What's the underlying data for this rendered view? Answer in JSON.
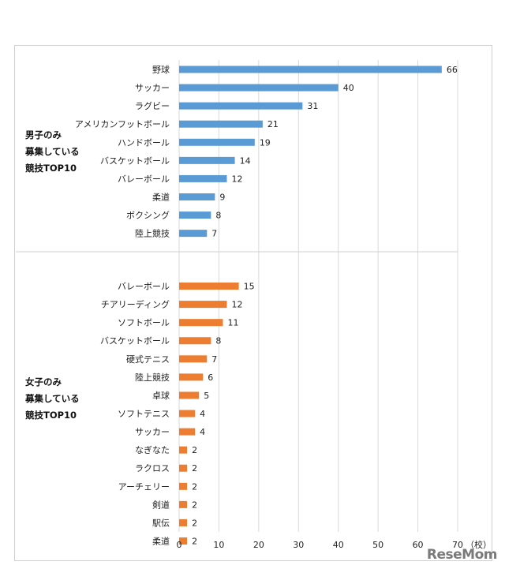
{
  "chart_data": {
    "type": "bar",
    "orientation": "horizontal",
    "xlim": [
      0,
      70
    ],
    "x_ticks": [
      "0",
      "10",
      "20",
      "30",
      "40",
      "50",
      "60",
      "70"
    ],
    "x_unit": "（校）",
    "grid": true,
    "groups": [
      {
        "label_lines": [
          "男子のみ",
          "募集している",
          "競技TOP10"
        ],
        "color": "#5B9BD5",
        "categories": [
          "野球",
          "サッカー",
          "ラグビー",
          "アメリカンフットボール",
          "ハンドボール",
          "バスケットボール",
          "バレーボール",
          "柔道",
          "ボクシング",
          "陸上競技"
        ],
        "values": [
          66,
          40,
          31,
          21,
          19,
          14,
          12,
          9,
          8,
          7
        ]
      },
      {
        "label_lines": [
          "女子のみ",
          "募集している",
          "競技TOP10"
        ],
        "color": "#ED7D31",
        "categories": [
          "バレーボール",
          "チアリーディング",
          "ソフトボール",
          "バスケットボール",
          "硬式テニス",
          "陸上競技",
          "卓球",
          "ソフトテニス",
          "サッカー",
          "なぎなた",
          "ラクロス",
          "アーチェリー",
          "剣道",
          "駅伝",
          "柔道"
        ],
        "values": [
          15,
          12,
          11,
          8,
          7,
          6,
          5,
          4,
          4,
          2,
          2,
          2,
          2,
          2,
          2
        ]
      }
    ]
  },
  "watermark": "ReseMom"
}
